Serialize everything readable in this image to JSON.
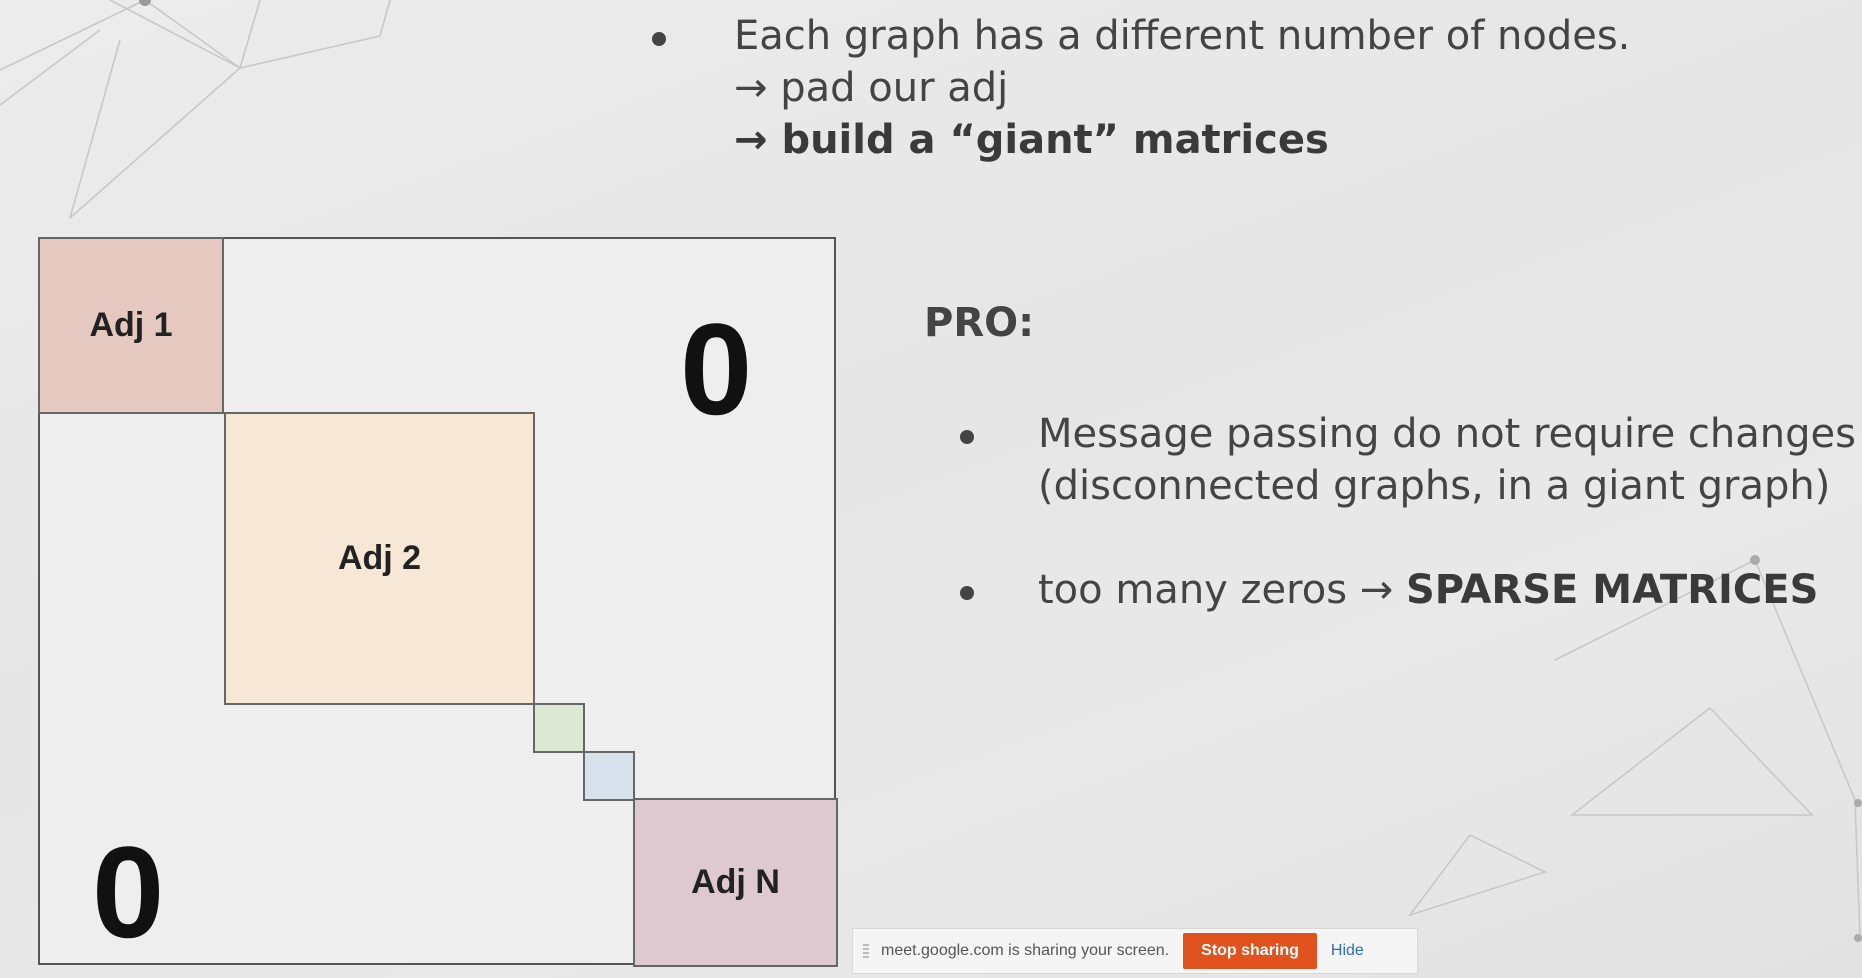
{
  "slide": {
    "top_bullet": {
      "line1": "Each graph has a different number of nodes.",
      "line2": "→ pad our adj",
      "line3": "→ build a “giant” matrices"
    },
    "matrix": {
      "adj1": "Adj 1",
      "adj2": "Adj 2",
      "adjn": "Adj N",
      "zero_top_right": "0",
      "zero_bottom_left": "0"
    },
    "pro": {
      "title": "PRO:",
      "item1_line1": "Message passing do not require changes",
      "item1_line2": "(disconnected graphs, in a giant graph)",
      "item2_prefix": "too many zeros → ",
      "item2_bold": "SPARSE MATRICES"
    }
  },
  "share_bar": {
    "message": "meet.google.com is sharing your screen.",
    "stop_label": "Stop sharing",
    "hide_label": "Hide"
  },
  "colors": {
    "adj1": "#e5c9c0",
    "adj2": "#f6e7d6",
    "adjn": "#ddc9cf",
    "stop_button": "#e0531e",
    "hide_link": "#2e6bb8"
  }
}
